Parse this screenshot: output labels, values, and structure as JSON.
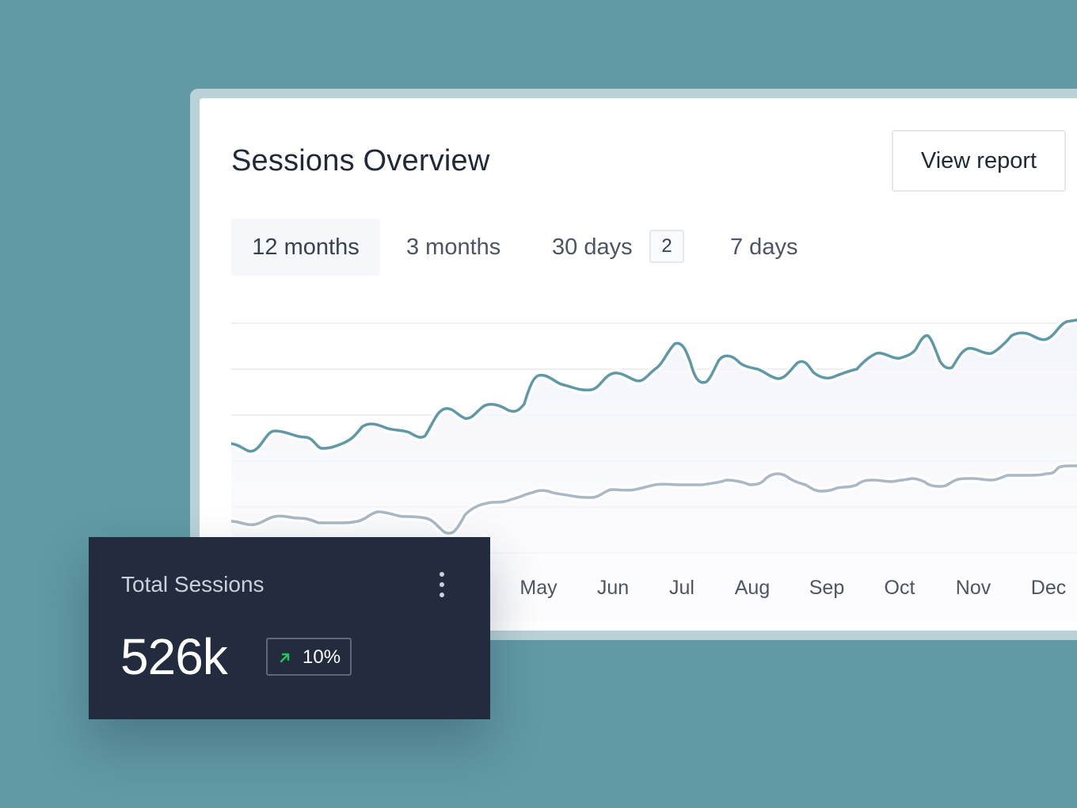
{
  "card": {
    "title": "Sessions Overview",
    "view_report_label": "View report"
  },
  "tabs": [
    {
      "label": "12 months",
      "active": true
    },
    {
      "label": "3 months",
      "active": false
    },
    {
      "label": "30 days",
      "active": false,
      "badge": "2"
    },
    {
      "label": "7 days",
      "active": false
    }
  ],
  "chart_data": {
    "type": "line",
    "x_ticks_visible": [
      "May",
      "Jun",
      "Jul",
      "Aug",
      "Sep",
      "Oct",
      "Nov",
      "Dec"
    ],
    "grid": true,
    "legend": "none",
    "series_colors": [
      "#5f98a6",
      "#a9b7c6"
    ]
  },
  "summary": {
    "title": "Total Sessions",
    "value": "526k",
    "change": "10%",
    "change_color": "#22c55e",
    "menu_icon": "more-vertical-icon",
    "trend_icon": "arrow-up-right-icon"
  },
  "colors": {
    "background": "#6199a5",
    "dark_card": "#222c3e",
    "primary_line": "#5f98a6",
    "secondary_line": "#a9b7c6"
  }
}
